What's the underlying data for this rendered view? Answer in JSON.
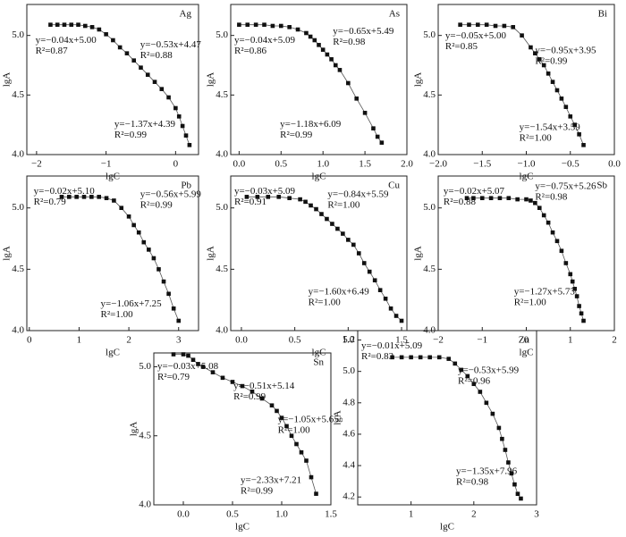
{
  "chart_data": [
    {
      "type": "line",
      "title": "Ag",
      "x_label": "lgC",
      "y_label": "lgA",
      "xlim": [
        -2.14,
        0.33
      ],
      "xticks": [
        {
          "value": -2,
          "label": "−2"
        },
        {
          "value": -1,
          "label": "−1"
        },
        0
      ],
      "ylim": [
        4.0,
        5.26
      ],
      "yticks": [
        {
          "value": 4.0,
          "label": "4.0"
        },
        {
          "value": 4.5,
          "label": "4.5"
        },
        {
          "value": 5.0,
          "label": "5.0"
        }
      ],
      "x": [
        -1.8,
        -1.7,
        -1.6,
        -1.5,
        -1.4,
        -1.3,
        -1.2,
        -1.1,
        -1.0,
        -0.9,
        -0.8,
        -0.7,
        -0.6,
        -0.5,
        -0.4,
        -0.3,
        -0.2,
        -0.1,
        0.0,
        0.05,
        0.1,
        0.15,
        0.2
      ],
      "values": [
        5.09,
        5.09,
        5.09,
        5.09,
        5.09,
        5.08,
        5.07,
        5.05,
        5.01,
        4.96,
        4.9,
        4.85,
        4.79,
        4.73,
        4.67,
        4.61,
        4.55,
        4.48,
        4.39,
        4.32,
        4.24,
        4.16,
        4.08
      ],
      "annotations": [
        [
          "y=−0.04x+5.00",
          "R²=0.87"
        ],
        [
          "y=−0.53x+4.47",
          "R²=0.88"
        ],
        [
          "y=−1.37x+4.39",
          "R²=0.99"
        ]
      ]
    },
    {
      "type": "line",
      "title": "As",
      "x_label": "lgC",
      "y_label": "lgA",
      "xlim": [
        -0.1,
        2.0
      ],
      "xticks": [
        {
          "value": 0,
          "label": "0.0"
        },
        0.5,
        {
          "value": 1,
          "label": "1.0"
        },
        1.5,
        {
          "value": 2,
          "label": "2.0"
        }
      ],
      "ylim": [
        4.0,
        5.26
      ],
      "yticks": [
        {
          "value": 4.0,
          "label": "4.0"
        },
        {
          "value": 4.5,
          "label": "4.5"
        },
        {
          "value": 5.0,
          "label": "5.0"
        }
      ],
      "x": [
        0.0,
        0.1,
        0.2,
        0.3,
        0.4,
        0.5,
        0.6,
        0.7,
        0.8,
        0.85,
        0.9,
        0.95,
        1.0,
        1.05,
        1.1,
        1.15,
        1.2,
        1.3,
        1.4,
        1.5,
        1.6,
        1.65,
        1.7
      ],
      "values": [
        5.09,
        5.09,
        5.09,
        5.09,
        5.08,
        5.08,
        5.07,
        5.05,
        5.02,
        4.99,
        4.96,
        4.92,
        4.88,
        4.84,
        4.8,
        4.75,
        4.71,
        4.6,
        4.47,
        4.35,
        4.22,
        4.15,
        4.1
      ],
      "annotations": [
        [
          "y=−0.04x+5.09",
          "R²=0.86"
        ],
        [
          "y=−0.65x+5.49",
          "R²=0.98"
        ],
        [
          "y=−1.18x+6.09",
          "R²=0.99"
        ]
      ]
    },
    {
      "type": "line",
      "title": "Bi",
      "x_label": "lgC",
      "y_label": "lgA",
      "xlim": [
        -2.0,
        0.0
      ],
      "xticks": [
        {
          "value": -2,
          "label": "−2.0"
        },
        {
          "value": -1.5,
          "label": "−1.5"
        },
        {
          "value": -1,
          "label": "−1.0"
        },
        {
          "value": -0.5,
          "label": "−0.5"
        },
        {
          "value": 0,
          "label": "0.0"
        }
      ],
      "ylim": [
        4.0,
        5.26
      ],
      "yticks": [
        {
          "value": 4.0,
          "label": "4.0"
        },
        {
          "value": 4.5,
          "label": "4.5"
        },
        {
          "value": 5.0,
          "label": "5.0"
        }
      ],
      "x": [
        -1.75,
        -1.65,
        -1.55,
        -1.45,
        -1.35,
        -1.25,
        -1.15,
        -1.05,
        -0.95,
        -0.9,
        -0.85,
        -0.8,
        -0.75,
        -0.7,
        -0.65,
        -0.6,
        -0.55,
        -0.5,
        -0.45,
        -0.4,
        -0.35
      ],
      "values": [
        5.09,
        5.09,
        5.09,
        5.09,
        5.08,
        5.08,
        5.07,
        5.0,
        4.9,
        4.85,
        4.8,
        4.75,
        4.68,
        4.61,
        4.54,
        4.47,
        4.4,
        4.32,
        4.25,
        4.17,
        4.08
      ],
      "annotations": [
        [
          "y=−0.05x+5.00",
          "R²=0.85"
        ],
        [
          "y=−0.95x+3.95",
          "R²=0.99"
        ],
        [
          "y=−1.54x+3.59",
          "R²=1.00"
        ]
      ]
    },
    {
      "type": "line",
      "title": "Pb",
      "x_label": "lgC",
      "y_label": "lgA",
      "xlim": [
        -0.05,
        3.4
      ],
      "xticks": [
        0,
        1,
        2,
        3
      ],
      "ylim": [
        4.0,
        5.26
      ],
      "yticks": [
        {
          "value": 4.0,
          "label": "4.0"
        },
        {
          "value": 4.5,
          "label": "4.5"
        },
        {
          "value": 5.0,
          "label": "5.0"
        }
      ],
      "x": [
        0.65,
        0.8,
        0.95,
        1.1,
        1.25,
        1.4,
        1.55,
        1.7,
        1.85,
        2.0,
        2.1,
        2.2,
        2.3,
        2.4,
        2.5,
        2.6,
        2.7,
        2.8,
        2.9,
        3.0
      ],
      "values": [
        5.09,
        5.09,
        5.09,
        5.09,
        5.09,
        5.09,
        5.08,
        5.06,
        5.0,
        4.93,
        4.86,
        4.8,
        4.72,
        4.66,
        4.59,
        4.5,
        4.4,
        4.3,
        4.18,
        4.08
      ],
      "annotations": [
        [
          "y=−0.02x+5.10",
          "R²=0.79"
        ],
        [
          "y=−0.56x+5.99",
          "R²=0.99"
        ],
        [
          "y=−1.06x+7.25",
          "R²=1.00"
        ]
      ]
    },
    {
      "type": "line",
      "title": "Cu",
      "x_label": "lgC",
      "y_label": "lgA",
      "xlim": [
        -0.1,
        1.55
      ],
      "xticks": [
        {
          "value": 0,
          "label": "0.0"
        },
        0.5,
        {
          "value": 1,
          "label": "1.0"
        },
        1.5
      ],
      "ylim": [
        4.0,
        5.26
      ],
      "yticks": [
        {
          "value": 4.0,
          "label": "4.0"
        },
        {
          "value": 4.5,
          "label": "4.5"
        },
        {
          "value": 5.0,
          "label": "5.0"
        }
      ],
      "x": [
        0.05,
        0.15,
        0.25,
        0.35,
        0.45,
        0.55,
        0.6,
        0.65,
        0.7,
        0.75,
        0.8,
        0.85,
        0.9,
        0.95,
        1.0,
        1.05,
        1.1,
        1.15,
        1.2,
        1.25,
        1.3,
        1.35,
        1.4,
        1.45,
        1.5
      ],
      "values": [
        5.09,
        5.09,
        5.09,
        5.09,
        5.08,
        5.07,
        5.05,
        5.02,
        4.99,
        4.95,
        4.91,
        4.87,
        4.83,
        4.79,
        4.74,
        4.7,
        4.63,
        4.55,
        4.48,
        4.41,
        4.33,
        4.26,
        4.18,
        4.12,
        4.08
      ],
      "annotations": [
        [
          "y=−0.03x+5.09",
          "R²=0.91"
        ],
        [
          "y=−0.84x+5.59",
          "R²=1.00"
        ],
        [
          "y=−1.60x+6.49",
          "R²=1.00"
        ]
      ]
    },
    {
      "type": "line",
      "title": "Sb",
      "x_label": "lgC",
      "y_label": "lgA",
      "xlim": [
        -2.0,
        2.0
      ],
      "xticks": [
        {
          "value": -2,
          "label": "−2"
        },
        {
          "value": -1,
          "label": "−1"
        },
        0,
        1,
        2
      ],
      "ylim": [
        4.0,
        5.26
      ],
      "yticks": [
        {
          "value": 4.0,
          "label": "4.0"
        },
        {
          "value": 4.5,
          "label": "4.5"
        },
        {
          "value": 5.0,
          "label": "5.0"
        }
      ],
      "x": [
        -1.35,
        -1.2,
        -1.0,
        -0.8,
        -0.6,
        -0.4,
        -0.2,
        0.0,
        0.1,
        0.2,
        0.3,
        0.4,
        0.5,
        0.6,
        0.7,
        0.8,
        0.9,
        1.0,
        1.05,
        1.1,
        1.15,
        1.2,
        1.25,
        1.3
      ],
      "values": [
        5.08,
        5.08,
        5.08,
        5.08,
        5.08,
        5.08,
        5.07,
        5.07,
        5.06,
        5.04,
        5.0,
        4.94,
        4.88,
        4.8,
        4.73,
        4.65,
        4.55,
        4.46,
        4.4,
        4.34,
        4.28,
        4.2,
        4.14,
        4.08
      ],
      "annotations": [
        [
          "y=−0.02x+5.07",
          "R²=0.88"
        ],
        [
          "y=−0.75x+5.26",
          "R²=0.98"
        ],
        [
          "y=−1.27x+5.73",
          "R²=1.00"
        ]
      ]
    },
    {
      "type": "line",
      "title": "Sn",
      "x_label": "lgC",
      "y_label": "lgA",
      "xlim": [
        -0.3,
        1.5
      ],
      "xticks": [
        {
          "value": 0,
          "label": "0.0"
        },
        0.5,
        {
          "value": 1,
          "label": "1.0"
        },
        1.5
      ],
      "ylim": [
        4.0,
        5.1
      ],
      "yticks": [
        {
          "value": 4.0,
          "label": "4.0"
        },
        {
          "value": 4.5,
          "label": "4.5"
        },
        {
          "value": 5.0,
          "label": "5.0"
        }
      ],
      "x": [
        -0.1,
        0.0,
        0.05,
        0.1,
        0.15,
        0.2,
        0.3,
        0.4,
        0.5,
        0.6,
        0.7,
        0.8,
        0.9,
        0.95,
        1.0,
        1.05,
        1.1,
        1.15,
        1.2,
        1.25,
        1.3,
        1.35
      ],
      "values": [
        5.09,
        5.09,
        5.08,
        5.05,
        5.02,
        5.0,
        4.96,
        4.92,
        4.89,
        4.86,
        4.82,
        4.77,
        4.72,
        4.68,
        4.63,
        4.57,
        4.5,
        4.44,
        4.38,
        4.32,
        4.2,
        4.08
      ],
      "annotations": [
        [
          "y=−0.03x+5.08",
          "R²=0.79"
        ],
        [
          "y=−0.51x+5.14",
          "R²=0.99"
        ],
        [
          "y=−1.05x+5.65",
          "R²=1.00"
        ],
        [
          "y=−2.33x+7.21",
          "R²=0.99"
        ]
      ]
    },
    {
      "type": "line",
      "title": "Zn",
      "x_label": "lgC",
      "y_label": "lgA",
      "xlim": [
        0.15,
        3.0
      ],
      "xticks": [
        1,
        2,
        3
      ],
      "ylim": [
        4.15,
        5.26
      ],
      "yticks": [
        {
          "value": 4.2,
          "label": "4.2"
        },
        {
          "value": 4.4,
          "label": "4.4"
        },
        {
          "value": 4.6,
          "label": "4.6"
        },
        {
          "value": 4.8,
          "label": "4.8"
        },
        {
          "value": 5.0,
          "label": "5.0"
        },
        {
          "value": 5.2,
          "label": "5.2"
        }
      ],
      "x": [
        0.7,
        0.85,
        1.0,
        1.15,
        1.3,
        1.45,
        1.6,
        1.7,
        1.8,
        1.9,
        2.0,
        2.1,
        2.2,
        2.3,
        2.4,
        2.45,
        2.5,
        2.55,
        2.6,
        2.65,
        2.7,
        2.75
      ],
      "values": [
        5.09,
        5.09,
        5.09,
        5.09,
        5.09,
        5.09,
        5.08,
        5.05,
        5.01,
        4.97,
        4.92,
        4.87,
        4.8,
        4.73,
        4.64,
        4.57,
        4.5,
        4.42,
        4.35,
        4.28,
        4.22,
        4.19
      ],
      "annotations": [
        [
          "y=−0.01x+5.09",
          "R²=0.83"
        ],
        [
          "y=−0.53x+5.99",
          "R²=0.96"
        ],
        [
          "y=−1.35x+7.96",
          "R²=0.98"
        ]
      ]
    }
  ]
}
